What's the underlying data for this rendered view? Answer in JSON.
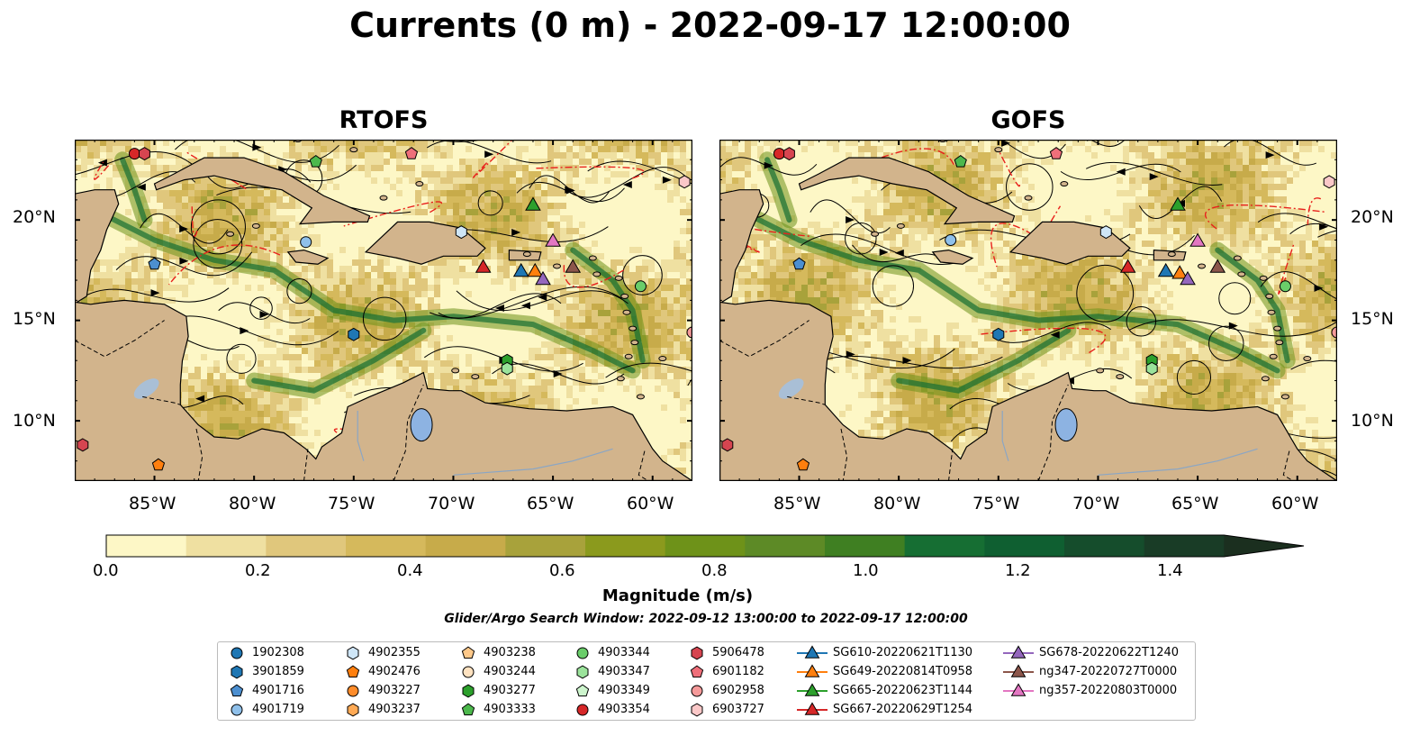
{
  "title": "Currents (0 m) - 2022-09-17 12:00:00",
  "panels": [
    {
      "title": "RTOFS"
    },
    {
      "title": "GOFS"
    }
  ],
  "lat_labels": [
    "20°N",
    "15°N",
    "10°N"
  ],
  "lon_labels": [
    "85°W",
    "80°W",
    "75°W",
    "70°W",
    "65°W",
    "60°W"
  ],
  "colorbar": {
    "label": "Magnitude (m/s)",
    "ticks": [
      "0.0",
      "0.2",
      "0.4",
      "0.6",
      "0.8",
      "1.0",
      "1.2",
      "1.4"
    ],
    "min": 0.0,
    "max": 1.5,
    "extend": "max",
    "colors": [
      "#fdf7c6",
      "#efe0a1",
      "#e0c77c",
      "#d5b95c",
      "#c7ab4a",
      "#a8a23b",
      "#8b9a1d",
      "#6e9219",
      "#5d8a26",
      "#3f7f22",
      "#166e33",
      "#0f5f31",
      "#154d2c",
      "#193c26",
      "#1b2f1f"
    ]
  },
  "subtitle": "Glider/Argo Search Window: 2022-09-12 13:00:00 to 2022-09-17 12:00:00",
  "map_extent": {
    "lon_min": -89,
    "lon_max": -58,
    "lat_min": 7,
    "lat_max": 24
  },
  "land_color": "#d2b48c",
  "legend": [
    {
      "label": "1902308",
      "marker": "circle",
      "color": "#1f77b4"
    },
    {
      "label": "3901859",
      "marker": "hexagon",
      "color": "#1f77b4"
    },
    {
      "label": "4901716",
      "marker": "pentagon",
      "color": "#4c8fd0"
    },
    {
      "label": "4901719",
      "marker": "circle",
      "color": "#8fc0ea"
    },
    {
      "label": "4902355",
      "marker": "hexagon",
      "color": "#cfe6f7"
    },
    {
      "label": "4902476",
      "marker": "pentagon",
      "color": "#ff7f0e"
    },
    {
      "label": "4903227",
      "marker": "circle",
      "color": "#ff8c2a"
    },
    {
      "label": "4903237",
      "marker": "hexagon",
      "color": "#ffaa55"
    },
    {
      "label": "4903238",
      "marker": "pentagon",
      "color": "#ffc98a"
    },
    {
      "label": "4903244",
      "marker": "circle",
      "color": "#ffe2c0"
    },
    {
      "label": "4903277",
      "marker": "hexagon",
      "color": "#2ca02c"
    },
    {
      "label": "4903333",
      "marker": "pentagon",
      "color": "#4cb84c"
    },
    {
      "label": "4903344",
      "marker": "circle",
      "color": "#6acd6a"
    },
    {
      "label": "4903347",
      "marker": "hexagon",
      "color": "#9be39b"
    },
    {
      "label": "4903349",
      "marker": "pentagon",
      "color": "#cdf5cd"
    },
    {
      "label": "4903354",
      "marker": "circle",
      "color": "#d62728"
    },
    {
      "label": "5906478",
      "marker": "hexagon",
      "color": "#d64550"
    },
    {
      "label": "6901182",
      "marker": "pentagon",
      "color": "#ef6f7a"
    },
    {
      "label": "6902958",
      "marker": "circle",
      "color": "#f59a9a"
    },
    {
      "label": "6903727",
      "marker": "hexagon",
      "color": "#fbc8c8"
    },
    {
      "label": "SG610-20220621T1130",
      "marker": "triangle",
      "color": "#1f77b4"
    },
    {
      "label": "SG649-20220814T0958",
      "marker": "triangle",
      "color": "#ff7f0e"
    },
    {
      "label": "SG665-20220623T1144",
      "marker": "triangle",
      "color": "#2ca02c"
    },
    {
      "label": "SG667-20220629T1254",
      "marker": "triangle",
      "color": "#d62728"
    },
    {
      "label": "SG678-20220622T1240",
      "marker": "triangle",
      "color": "#9467bd"
    },
    {
      "label": "ng347-20220727T0000",
      "marker": "triangle",
      "color": "#8c564b"
    },
    {
      "label": "ng357-20220803T0000",
      "marker": "triangle",
      "color": "#e377c2"
    }
  ],
  "observations": {
    "rtofs": [
      {
        "id": "4903354",
        "lon": -86.0,
        "lat": 23.3
      },
      {
        "id": "5906478",
        "lon": -85.5,
        "lat": 23.3
      },
      {
        "id": "4903333",
        "lon": -76.9,
        "lat": 22.9
      },
      {
        "id": "6901182",
        "lon": -72.1,
        "lat": 23.3
      },
      {
        "id": "6903727",
        "lon": -58.4,
        "lat": 21.9
      },
      {
        "id": "SG665-20220623T1144",
        "lon": -66.0,
        "lat": 20.7
      },
      {
        "id": "4901719",
        "lon": -77.4,
        "lat": 18.9
      },
      {
        "id": "4902355",
        "lon": -69.6,
        "lat": 19.4
      },
      {
        "id": "ng357-20220803T0000",
        "lon": -65.0,
        "lat": 18.9
      },
      {
        "id": "4901716",
        "lon": -85.0,
        "lat": 17.8
      },
      {
        "id": "SG667-20220629T1254",
        "lon": -68.5,
        "lat": 17.6
      },
      {
        "id": "SG610-20220621T1130",
        "lon": -66.6,
        "lat": 17.4
      },
      {
        "id": "SG649-20220814T0958",
        "lon": -65.9,
        "lat": 17.4
      },
      {
        "id": "SG678-20220622T1240",
        "lon": -65.5,
        "lat": 17.0
      },
      {
        "id": "ng347-20220727T0000",
        "lon": -64.0,
        "lat": 17.6
      },
      {
        "id": "4903344",
        "lon": -60.6,
        "lat": 16.7
      },
      {
        "id": "3901859",
        "lon": -75.0,
        "lat": 14.3
      },
      {
        "id": "6902958",
        "lon": -58.0,
        "lat": 14.4
      },
      {
        "id": "4903277",
        "lon": -67.3,
        "lat": 13.0
      },
      {
        "id": "4903347",
        "lon": -67.3,
        "lat": 12.6
      },
      {
        "id": "5906478",
        "lon": -88.6,
        "lat": 8.8
      },
      {
        "id": "4902476",
        "lon": -84.8,
        "lat": 7.8
      }
    ],
    "gofs": [
      {
        "id": "4903354",
        "lon": -86.0,
        "lat": 23.3
      },
      {
        "id": "5906478",
        "lon": -85.5,
        "lat": 23.3
      },
      {
        "id": "4903333",
        "lon": -76.9,
        "lat": 22.9
      },
      {
        "id": "6901182",
        "lon": -72.1,
        "lat": 23.3
      },
      {
        "id": "6903727",
        "lon": -58.4,
        "lat": 21.9
      },
      {
        "id": "SG665-20220623T1144",
        "lon": -66.0,
        "lat": 20.7
      },
      {
        "id": "4901719",
        "lon": -77.4,
        "lat": 19.0
      },
      {
        "id": "4902355",
        "lon": -69.6,
        "lat": 19.4
      },
      {
        "id": "ng357-20220803T0000",
        "lon": -65.0,
        "lat": 18.9
      },
      {
        "id": "4901716",
        "lon": -85.0,
        "lat": 17.8
      },
      {
        "id": "SG667-20220629T1254",
        "lon": -68.5,
        "lat": 17.6
      },
      {
        "id": "SG610-20220621T1130",
        "lon": -66.6,
        "lat": 17.4
      },
      {
        "id": "SG649-20220814T0958",
        "lon": -65.9,
        "lat": 17.3
      },
      {
        "id": "SG678-20220622T1240",
        "lon": -65.5,
        "lat": 17.0
      },
      {
        "id": "ng347-20220727T0000",
        "lon": -64.0,
        "lat": 17.6
      },
      {
        "id": "4903344",
        "lon": -60.6,
        "lat": 16.7
      },
      {
        "id": "3901859",
        "lon": -75.0,
        "lat": 14.3
      },
      {
        "id": "6902958",
        "lon": -58.0,
        "lat": 14.4
      },
      {
        "id": "4903277",
        "lon": -67.3,
        "lat": 13.0
      },
      {
        "id": "4903347",
        "lon": -67.3,
        "lat": 12.6
      },
      {
        "id": "5906478",
        "lon": -88.6,
        "lat": 8.8
      },
      {
        "id": "4902476",
        "lon": -84.8,
        "lat": 7.8
      }
    ]
  }
}
